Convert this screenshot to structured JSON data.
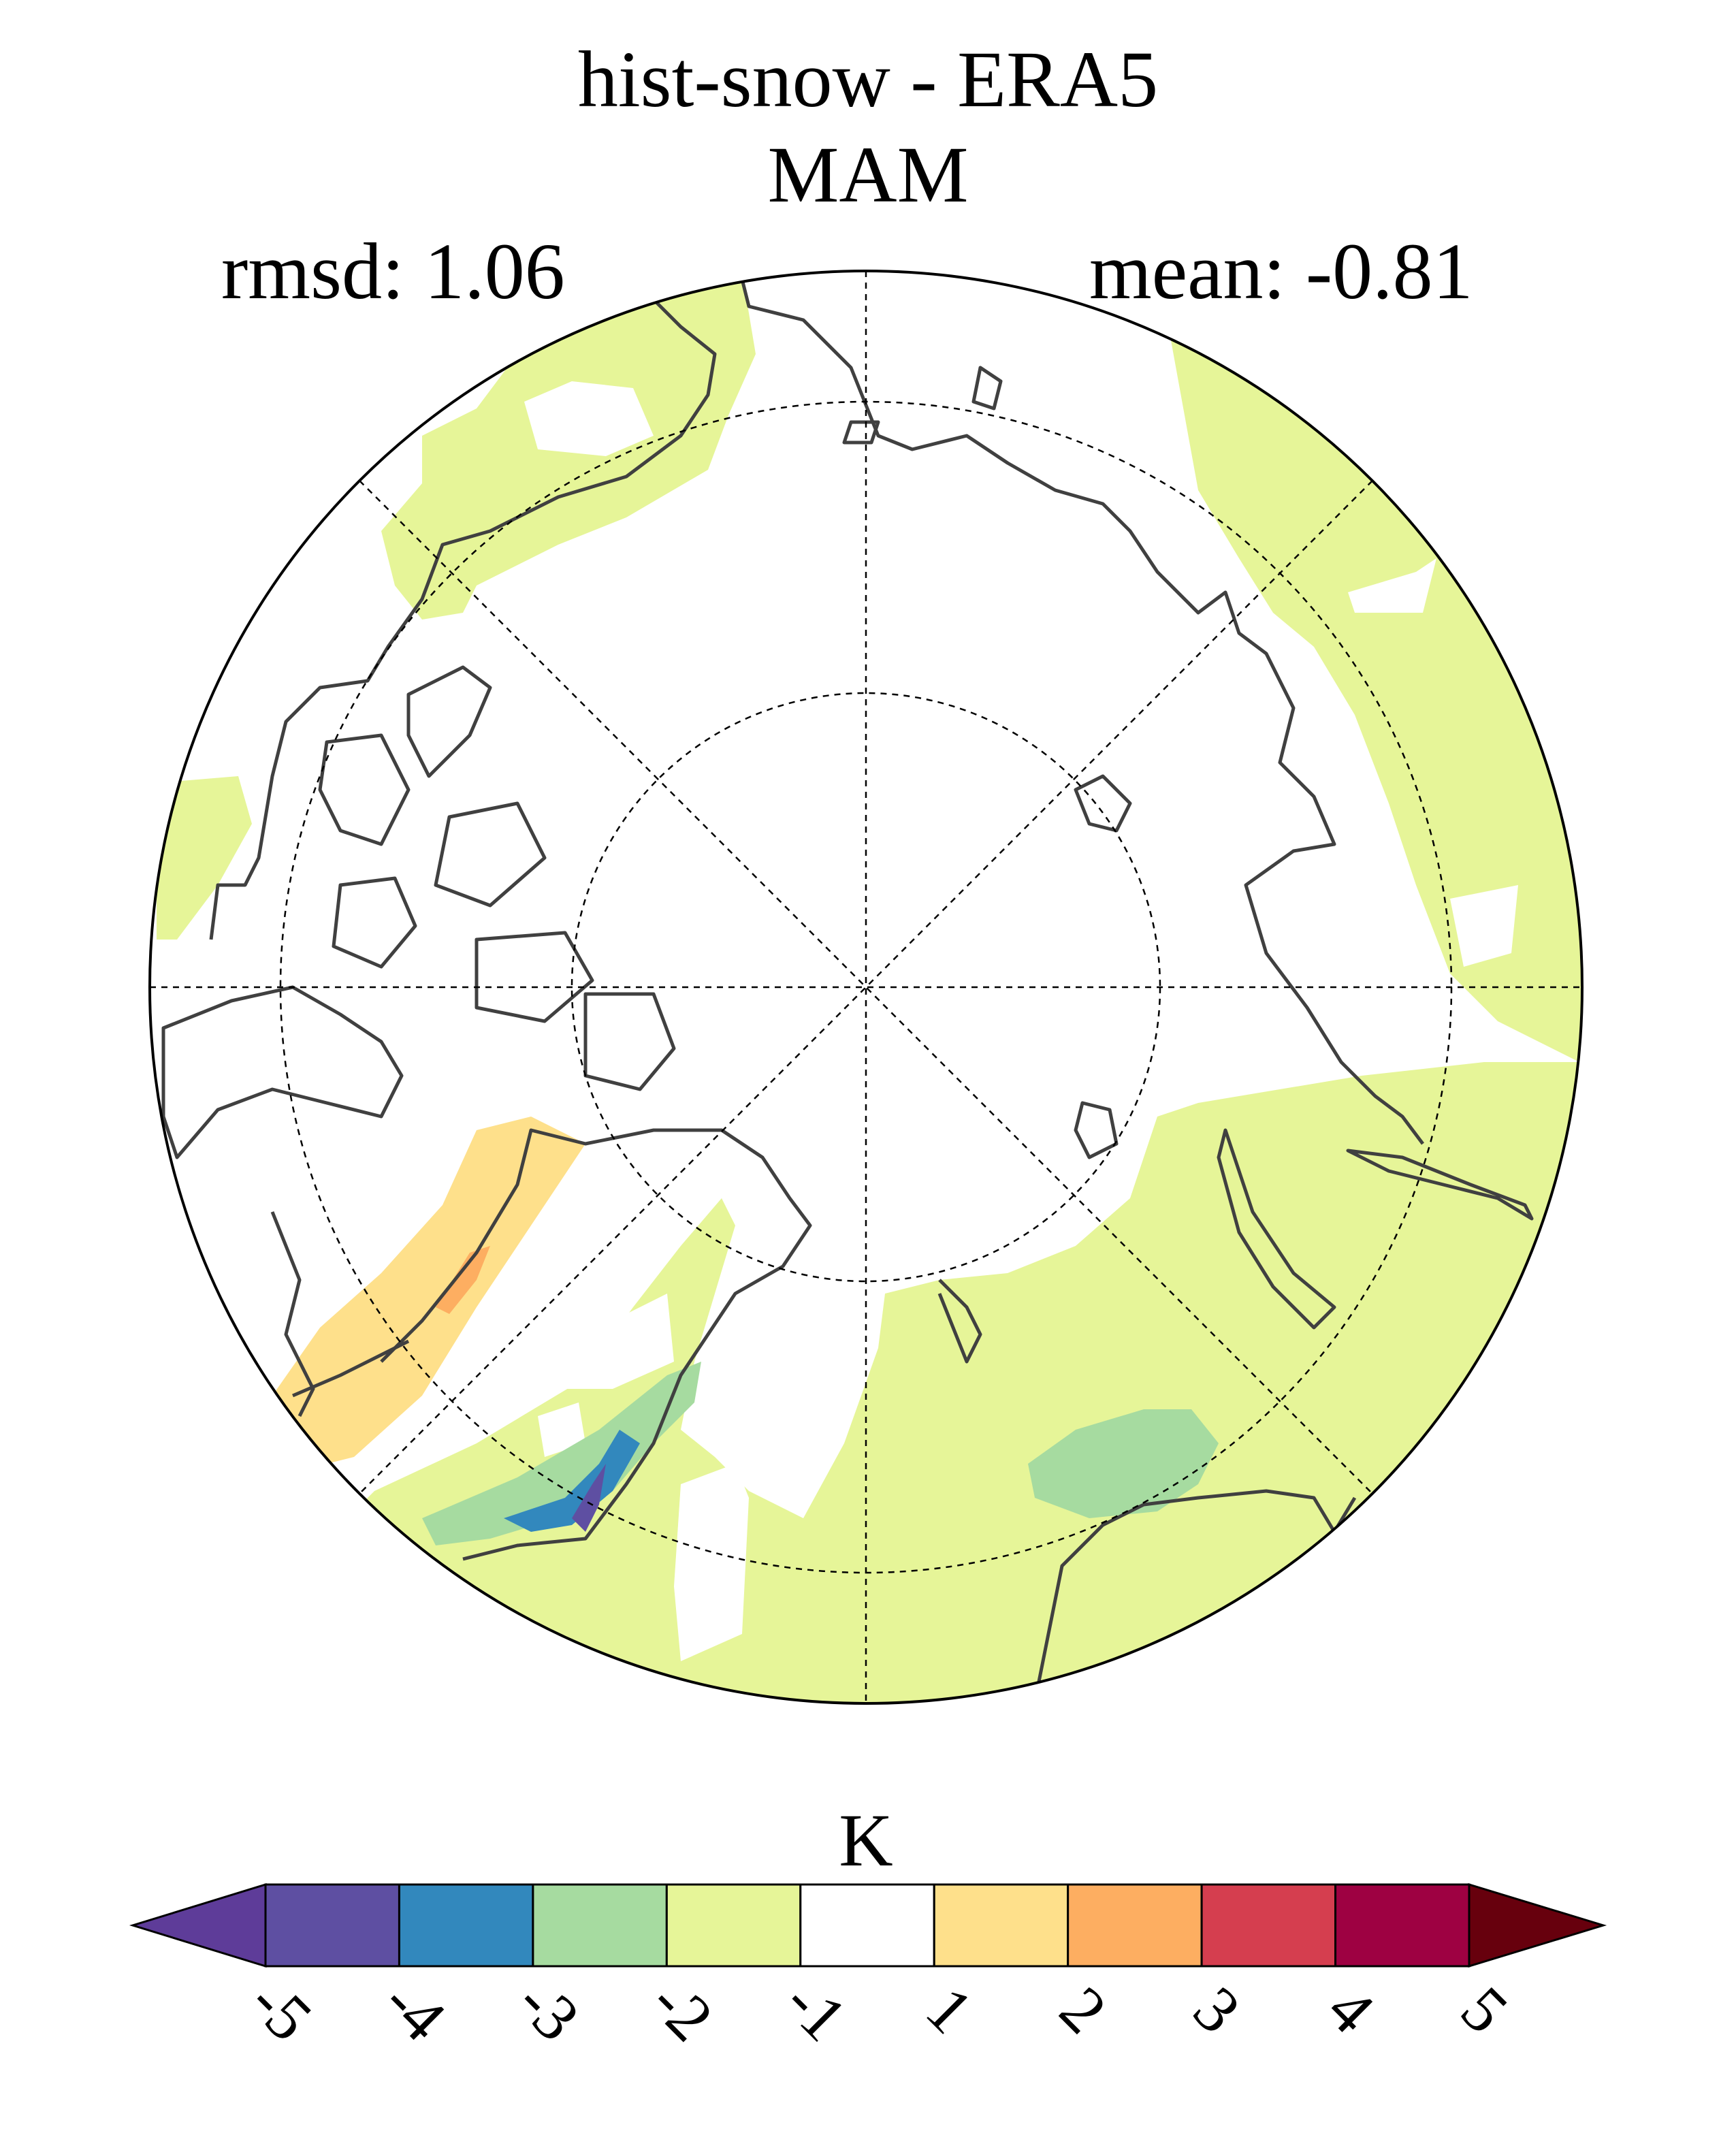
{
  "title": "hist-snow - ERA5",
  "subtitle": "MAM",
  "stats": {
    "rmsd": "rmsd: 1.06",
    "mean": "mean: -0.81"
  },
  "colorbar": {
    "unit": "K",
    "ticks": [
      "-5",
      "-4",
      "-3",
      "-2",
      "-1",
      "1",
      "2",
      "3",
      "4",
      "5"
    ],
    "colors": {
      "under": "#5e3c99",
      "bins": [
        "#5e4fa2",
        "#3288bd",
        "#a6dba0",
        "#e6f598",
        "#ffffff",
        "#fee08b",
        "#fdae61",
        "#d53e4f",
        "#9e0142"
      ],
      "over": "#67000d"
    }
  },
  "map": {
    "projection": "north-polar-stereographic",
    "field_colors": {
      "land_fill": "#e6f598",
      "warm": "#fee08b",
      "warmer": "#fdae61",
      "cool": "#a6dba0",
      "cold": "#3288bd",
      "coldest": "#5e4fa2"
    }
  }
}
